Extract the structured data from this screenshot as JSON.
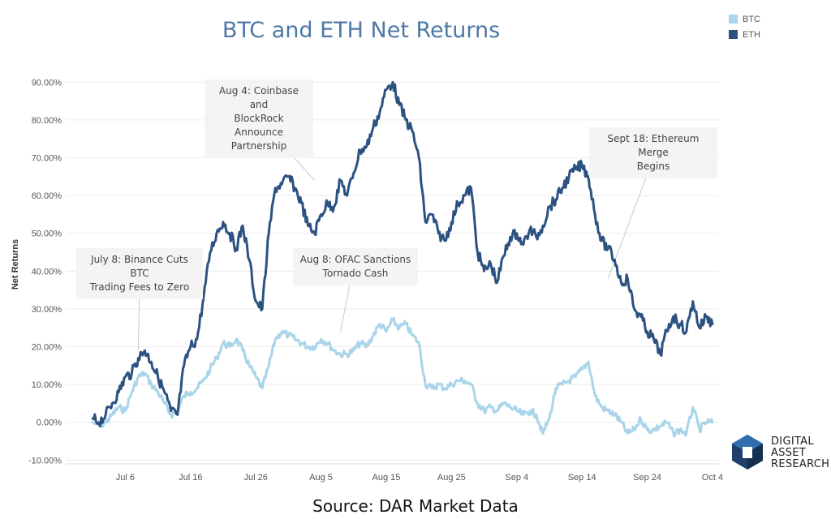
{
  "chart_data": {
    "type": "line",
    "title": "BTC and ETH Net Returns",
    "ylabel": "Net Returns",
    "xlabel": "",
    "x_tick_labels": [
      "Jul 6",
      "Jul 16",
      "Jul 26",
      "Aug 5",
      "Aug 15",
      "Aug 25",
      "Sep 4",
      "Sep 14",
      "Sep 24",
      "Oct 4"
    ],
    "y_tick_labels": [
      "-10.00%",
      "0.00%",
      "10.00%",
      "20.00%",
      "30.00%",
      "40.00%",
      "50.00%",
      "60.00%",
      "70.00%",
      "80.00%",
      "90.00%"
    ],
    "ylim": [
      -11,
      95
    ],
    "xlim": [
      "2022-06-27",
      "2022-10-05"
    ],
    "legend_position": "top-right",
    "grid": "horizontal",
    "series": [
      {
        "name": "BTC",
        "color": "#a9d4ea",
        "points": [
          [
            "2022-07-01",
            0
          ],
          [
            "2022-07-02",
            -1
          ],
          [
            "2022-07-03",
            0
          ],
          [
            "2022-07-04",
            2
          ],
          [
            "2022-07-05",
            4
          ],
          [
            "2022-07-06",
            3
          ],
          [
            "2022-07-07",
            8
          ],
          [
            "2022-07-08",
            12
          ],
          [
            "2022-07-09",
            13
          ],
          [
            "2022-07-10",
            10
          ],
          [
            "2022-07-11",
            8
          ],
          [
            "2022-07-12",
            5
          ],
          [
            "2022-07-13",
            2
          ],
          [
            "2022-07-14",
            3
          ],
          [
            "2022-07-15",
            7
          ],
          [
            "2022-07-16",
            8
          ],
          [
            "2022-07-17",
            9
          ],
          [
            "2022-07-18",
            11
          ],
          [
            "2022-07-19",
            14
          ],
          [
            "2022-07-20",
            17
          ],
          [
            "2022-07-21",
            21
          ],
          [
            "2022-07-22",
            20
          ],
          [
            "2022-07-23",
            22
          ],
          [
            "2022-07-24",
            19
          ],
          [
            "2022-07-25",
            15
          ],
          [
            "2022-07-26",
            12
          ],
          [
            "2022-07-27",
            9
          ],
          [
            "2022-07-28",
            15
          ],
          [
            "2022-07-29",
            22
          ],
          [
            "2022-07-30",
            24
          ],
          [
            "2022-07-31",
            23
          ],
          [
            "2022-08-01",
            22
          ],
          [
            "2022-08-02",
            21
          ],
          [
            "2022-08-03",
            20
          ],
          [
            "2022-08-04",
            20
          ],
          [
            "2022-08-05",
            22
          ],
          [
            "2022-08-06",
            21
          ],
          [
            "2022-08-07",
            19
          ],
          [
            "2022-08-08",
            18
          ],
          [
            "2022-08-09",
            18
          ],
          [
            "2022-08-10",
            19
          ],
          [
            "2022-08-11",
            21
          ],
          [
            "2022-08-12",
            20
          ],
          [
            "2022-08-13",
            23
          ],
          [
            "2022-08-14",
            26
          ],
          [
            "2022-08-15",
            24
          ],
          [
            "2022-08-16",
            27
          ],
          [
            "2022-08-17",
            25
          ],
          [
            "2022-08-18",
            26
          ],
          [
            "2022-08-19",
            23
          ],
          [
            "2022-08-20",
            21
          ],
          [
            "2022-08-21",
            10
          ],
          [
            "2022-08-22",
            9
          ],
          [
            "2022-08-23",
            10
          ],
          [
            "2022-08-24",
            9
          ],
          [
            "2022-08-25",
            10
          ],
          [
            "2022-08-26",
            11
          ],
          [
            "2022-08-27",
            11
          ],
          [
            "2022-08-28",
            10
          ],
          [
            "2022-08-29",
            5
          ],
          [
            "2022-08-30",
            3
          ],
          [
            "2022-08-31",
            4
          ],
          [
            "2022-09-01",
            3
          ],
          [
            "2022-09-02",
            5
          ],
          [
            "2022-09-03",
            4
          ],
          [
            "2022-09-04",
            3
          ],
          [
            "2022-09-05",
            2
          ],
          [
            "2022-09-06",
            3
          ],
          [
            "2022-09-07",
            2
          ],
          [
            "2022-09-08",
            -3
          ],
          [
            "2022-09-09",
            1
          ],
          [
            "2022-09-10",
            9
          ],
          [
            "2022-09-11",
            10
          ],
          [
            "2022-09-12",
            11
          ],
          [
            "2022-09-13",
            12
          ],
          [
            "2022-09-14",
            14
          ],
          [
            "2022-09-15",
            16
          ],
          [
            "2022-09-16",
            7
          ],
          [
            "2022-09-17",
            4
          ],
          [
            "2022-09-18",
            3
          ],
          [
            "2022-09-19",
            2
          ],
          [
            "2022-09-20",
            0
          ],
          [
            "2022-09-21",
            -3
          ],
          [
            "2022-09-22",
            -2
          ],
          [
            "2022-09-23",
            1
          ],
          [
            "2022-09-24",
            -2
          ],
          [
            "2022-09-25",
            -2
          ],
          [
            "2022-09-26",
            -1
          ],
          [
            "2022-09-27",
            0
          ],
          [
            "2022-09-28",
            -3
          ],
          [
            "2022-09-29",
            -2
          ],
          [
            "2022-09-30",
            -3
          ],
          [
            "2022-10-01",
            4
          ],
          [
            "2022-10-02",
            -2
          ],
          [
            "2022-10-03",
            0
          ],
          [
            "2022-10-04",
            0
          ]
        ]
      },
      {
        "name": "ETH",
        "color": "#2c5282",
        "points": [
          [
            "2022-07-01",
            1
          ],
          [
            "2022-07-02",
            0
          ],
          [
            "2022-07-03",
            2
          ],
          [
            "2022-07-04",
            5
          ],
          [
            "2022-07-05",
            8
          ],
          [
            "2022-07-06",
            12
          ],
          [
            "2022-07-07",
            13
          ],
          [
            "2022-07-08",
            17
          ],
          [
            "2022-07-09",
            19
          ],
          [
            "2022-07-10",
            16
          ],
          [
            "2022-07-11",
            12
          ],
          [
            "2022-07-12",
            8
          ],
          [
            "2022-07-13",
            3
          ],
          [
            "2022-07-14",
            2
          ],
          [
            "2022-07-15",
            15
          ],
          [
            "2022-07-16",
            20
          ],
          [
            "2022-07-17",
            22
          ],
          [
            "2022-07-18",
            33
          ],
          [
            "2022-07-19",
            45
          ],
          [
            "2022-07-20",
            50
          ],
          [
            "2022-07-21",
            53
          ],
          [
            "2022-07-22",
            50
          ],
          [
            "2022-07-23",
            46
          ],
          [
            "2022-07-24",
            52
          ],
          [
            "2022-07-25",
            43
          ],
          [
            "2022-07-26",
            32
          ],
          [
            "2022-07-27",
            30
          ],
          [
            "2022-07-28",
            50
          ],
          [
            "2022-07-29",
            62
          ],
          [
            "2022-07-30",
            63
          ],
          [
            "2022-07-31",
            65
          ],
          [
            "2022-08-01",
            62
          ],
          [
            "2022-08-02",
            58
          ],
          [
            "2022-08-03",
            52
          ],
          [
            "2022-08-04",
            50
          ],
          [
            "2022-08-05",
            55
          ],
          [
            "2022-08-06",
            58
          ],
          [
            "2022-08-07",
            57
          ],
          [
            "2022-08-08",
            64
          ],
          [
            "2022-08-09",
            60
          ],
          [
            "2022-08-10",
            66
          ],
          [
            "2022-08-11",
            72
          ],
          [
            "2022-08-12",
            73
          ],
          [
            "2022-08-13",
            78
          ],
          [
            "2022-08-14",
            82
          ],
          [
            "2022-08-15",
            88
          ],
          [
            "2022-08-16",
            90
          ],
          [
            "2022-08-17",
            84
          ],
          [
            "2022-08-18",
            80
          ],
          [
            "2022-08-19",
            77
          ],
          [
            "2022-08-20",
            70
          ],
          [
            "2022-08-21",
            53
          ],
          [
            "2022-08-22",
            55
          ],
          [
            "2022-08-23",
            50
          ],
          [
            "2022-08-24",
            48
          ],
          [
            "2022-08-25",
            53
          ],
          [
            "2022-08-26",
            58
          ],
          [
            "2022-08-27",
            60
          ],
          [
            "2022-08-28",
            62
          ],
          [
            "2022-08-29",
            45
          ],
          [
            "2022-08-30",
            40
          ],
          [
            "2022-08-31",
            42
          ],
          [
            "2022-09-01",
            37
          ],
          [
            "2022-09-02",
            44
          ],
          [
            "2022-09-03",
            49
          ],
          [
            "2022-09-04",
            50
          ],
          [
            "2022-09-05",
            47
          ],
          [
            "2022-09-06",
            51
          ],
          [
            "2022-09-07",
            49
          ],
          [
            "2022-09-08",
            52
          ],
          [
            "2022-09-09",
            57
          ],
          [
            "2022-09-10",
            59
          ],
          [
            "2022-09-11",
            62
          ],
          [
            "2022-09-12",
            65
          ],
          [
            "2022-09-13",
            67
          ],
          [
            "2022-09-14",
            68
          ],
          [
            "2022-09-15",
            65
          ],
          [
            "2022-09-16",
            55
          ],
          [
            "2022-09-17",
            48
          ],
          [
            "2022-09-18",
            46
          ],
          [
            "2022-09-19",
            43
          ],
          [
            "2022-09-20",
            37
          ],
          [
            "2022-09-21",
            38
          ],
          [
            "2022-09-22",
            30
          ],
          [
            "2022-09-23",
            28
          ],
          [
            "2022-09-24",
            24
          ],
          [
            "2022-09-25",
            22
          ],
          [
            "2022-09-26",
            18
          ],
          [
            "2022-09-27",
            24
          ],
          [
            "2022-09-28",
            28
          ],
          [
            "2022-09-29",
            26
          ],
          [
            "2022-09-30",
            24
          ],
          [
            "2022-10-01",
            32
          ],
          [
            "2022-10-02",
            25
          ],
          [
            "2022-10-03",
            28
          ],
          [
            "2022-10-04",
            26
          ]
        ]
      }
    ],
    "annotations": [
      {
        "line1": "July 8: Binance Cuts BTC",
        "line2": "Trading Fees to Zero",
        "line3": "",
        "date": "2022-07-08",
        "value": 19
      },
      {
        "line1": "Aug 4: Coinbase and",
        "line2": "BlockRock Announce",
        "line3": "Partnership",
        "date": "2022-08-04",
        "value": 64
      },
      {
        "line1": "Aug 8: OFAC Sanctions",
        "line2": "Tornado Cash",
        "line3": "",
        "date": "2022-08-08",
        "value": 24
      },
      {
        "line1": "Sept 18: Ethereum Merge",
        "line2": "Begins",
        "line3": "",
        "date": "2022-09-18",
        "value": 38
      }
    ]
  },
  "source": "Source: DAR Market Data",
  "logo": {
    "line1": "DIGITAL",
    "line2": "ASSET",
    "line3": "RESEARCH"
  }
}
